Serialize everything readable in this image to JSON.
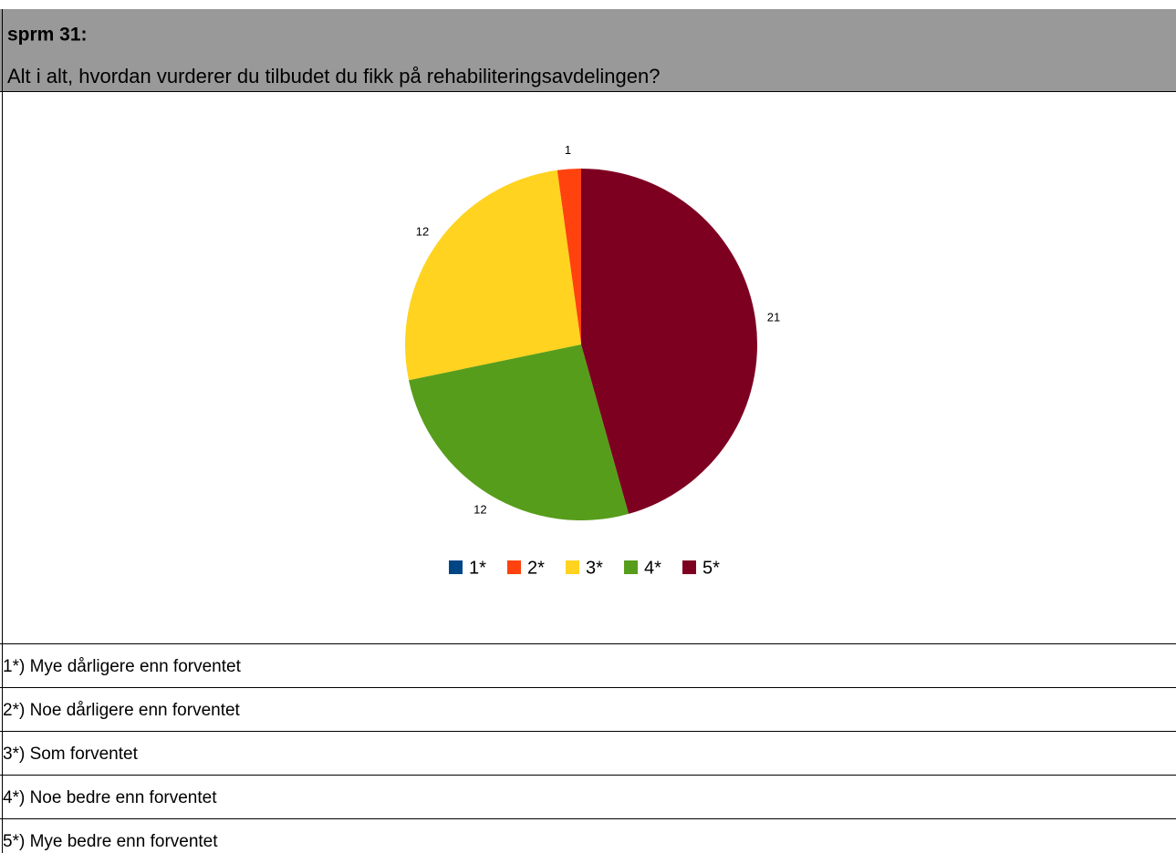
{
  "header": {
    "title": "sprm 31:",
    "subtitle": "Alt i alt, hvordan vurderer du tilbudet du fikk på rehabiliteringsavdelingen?"
  },
  "chart_data": {
    "type": "pie",
    "categories": [
      "1*",
      "2*",
      "3*",
      "4*",
      "5*"
    ],
    "values": [
      0,
      1,
      12,
      12,
      21
    ],
    "colors": [
      "#004586",
      "#ff420e",
      "#ffd320",
      "#579d1c",
      "#7e0021"
    ]
  },
  "table": {
    "rows": [
      "1*) Mye dårligere enn forventet",
      "2*) Noe dårligere enn forventet",
      "3*) Som forventet",
      "4*) Noe bedre enn forventet",
      "5*) Mye bedre enn forventet"
    ]
  }
}
